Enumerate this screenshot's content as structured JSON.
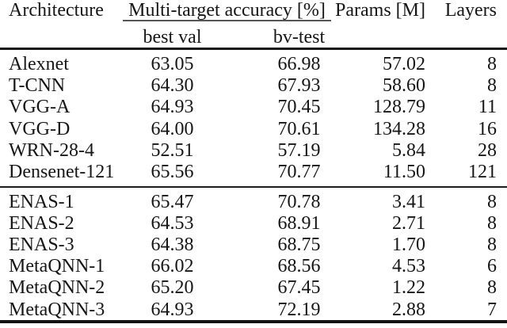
{
  "table": {
    "headers": {
      "architecture": "Architecture",
      "accuracy_group": "Multi-target accuracy [%]",
      "best_val": "best val",
      "bv_test": "bv-test",
      "params": "Params [M]",
      "layers": "Layers"
    },
    "baseline_group": {
      "rows": [
        {
          "name": "Alexnet",
          "best_val": "63.05",
          "bv_test": "66.98",
          "params": "57.02",
          "layers": "8"
        },
        {
          "name": "T-CNN",
          "best_val": "64.30",
          "bv_test": "67.93",
          "params": "58.60",
          "layers": "8"
        },
        {
          "name": "VGG-A",
          "best_val": "64.93",
          "bv_test": "70.45",
          "params": "128.79",
          "layers": "11"
        },
        {
          "name": "VGG-D",
          "best_val": "64.00",
          "bv_test": "70.61",
          "params": "134.28",
          "layers": "16"
        },
        {
          "name": "WRN-28-4",
          "best_val": "52.51",
          "bv_test": "57.19",
          "params": "5.84",
          "layers": "28"
        },
        {
          "name": "Densenet-121",
          "best_val": "65.56",
          "bv_test": "70.77",
          "params": "11.50",
          "layers": "121"
        }
      ]
    },
    "nas_group": {
      "rows": [
        {
          "name": "ENAS-1",
          "best_val": "65.47",
          "bv_test": "70.78",
          "params": "3.41",
          "layers": "8"
        },
        {
          "name": "ENAS-2",
          "best_val": "64.53",
          "bv_test": "68.91",
          "params": "2.71",
          "layers": "8"
        },
        {
          "name": "ENAS-3",
          "best_val": "64.38",
          "bv_test": "68.75",
          "params": "1.70",
          "layers": "8"
        },
        {
          "name": "MetaQNN-1",
          "best_val": "66.02",
          "bv_test": "68.56",
          "params": "4.53",
          "layers": "6"
        },
        {
          "name": "MetaQNN-2",
          "best_val": "65.20",
          "bv_test": "67.45",
          "params": "1.22",
          "layers": "8"
        },
        {
          "name": "MetaQNN-3",
          "best_val": "64.93",
          "bv_test": "72.19",
          "params": "2.88",
          "layers": "7"
        }
      ]
    }
  }
}
